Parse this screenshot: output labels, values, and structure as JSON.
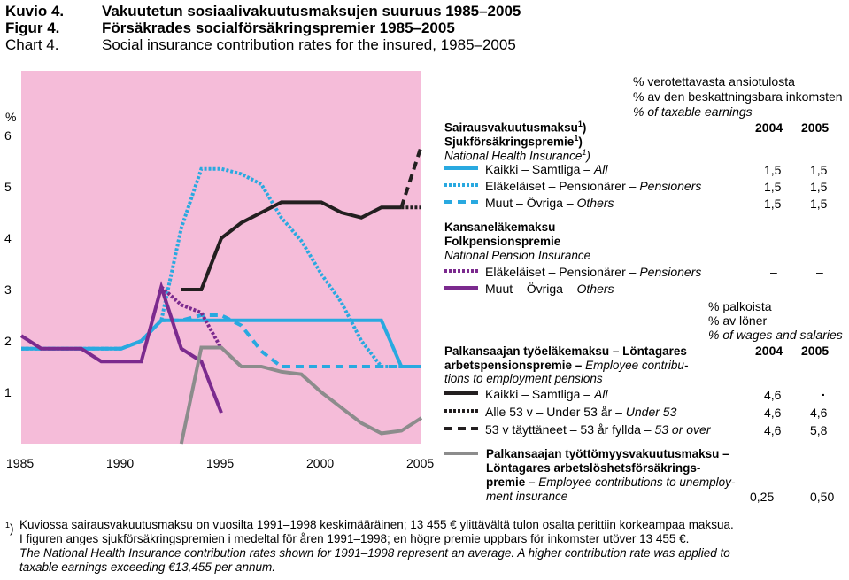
{
  "titles": {
    "fi_label": "Kuvio 4.",
    "fi_text": "Vakuutetun sosiaalivakuutusmaksujen suuruus 1985–2005",
    "sv_label": "Figur 4.",
    "sv_text": "Försäkrades socialförsäkringspremier 1985–2005",
    "en_label": "Chart 4.",
    "en_text": "Social insurance contribution rates for the insured, 1985–2005"
  },
  "colors": {
    "plot_bg": "#f5bcd9",
    "health": "#29a9e0",
    "pension_nat": "#7b2a8e",
    "employee": "#231f20",
    "unemployment": "#8c8c8c"
  },
  "chart_data": {
    "type": "line",
    "ylabel": "%",
    "xlim": [
      1985,
      2005
    ],
    "ylim": [
      0,
      7
    ],
    "x_ticks": [
      1985,
      1990,
      1995,
      2000,
      2005
    ],
    "y_ticks": [
      1,
      2,
      3,
      4,
      5,
      6
    ],
    "grid": false,
    "series": [
      {
        "name": "Kaikki – Samtliga – All",
        "group": "health",
        "style": "solid",
        "x": [
          1985,
          1986,
          1987,
          1988,
          1989,
          1990,
          1991,
          1992,
          1993,
          1994,
          1995,
          1996,
          1997,
          1998,
          1999,
          2000,
          2001,
          2002,
          2003,
          2004,
          2005
        ],
        "y": [
          1.85,
          1.85,
          1.85,
          1.85,
          1.85,
          1.85,
          2.0,
          2.4,
          2.4,
          2.4,
          2.4,
          2.4,
          2.4,
          2.4,
          2.4,
          2.4,
          2.4,
          2.4,
          2.4,
          1.5,
          1.5
        ]
      },
      {
        "name": "Eläkeläiset – Pensionärer – Pensioners",
        "group": "health",
        "style": "dotted",
        "x": [
          1985,
          1986,
          1987,
          1988,
          1989,
          1990,
          1991,
          1992,
          1993,
          1994,
          1995,
          1996,
          1997,
          1998,
          1999,
          2000,
          2001,
          2002,
          2003,
          2004,
          2005
        ],
        "y": [
          1.85,
          1.85,
          1.85,
          1.85,
          1.85,
          1.85,
          2.0,
          2.4,
          4.2,
          5.35,
          5.35,
          5.25,
          5.05,
          4.4,
          3.95,
          3.3,
          2.75,
          2.0,
          1.5,
          1.5,
          1.5
        ]
      },
      {
        "name": "Muut – Övriga – Others",
        "group": "health",
        "style": "dashed",
        "x": [
          1985,
          1986,
          1987,
          1988,
          1989,
          1990,
          1991,
          1992,
          1993,
          1994,
          1995,
          1996,
          1997,
          1998,
          1999,
          2000,
          2001,
          2002,
          2003,
          2004,
          2005
        ],
        "y": [
          1.85,
          1.85,
          1.85,
          1.85,
          1.85,
          1.85,
          2.0,
          2.4,
          2.4,
          2.5,
          2.5,
          2.3,
          1.8,
          1.5,
          1.5,
          1.5,
          1.5,
          1.5,
          1.5,
          1.5,
          1.5
        ]
      },
      {
        "name": "Eläkeläiset – Pensionärer – Pensioners",
        "group": "national_pension",
        "style": "dotted",
        "x": [
          1992,
          1993,
          1994,
          1995
        ],
        "y": [
          3.05,
          2.7,
          2.55,
          1.85
        ]
      },
      {
        "name": "Muut – Övriga – Others",
        "group": "national_pension",
        "style": "solid",
        "x": [
          1985,
          1986,
          1987,
          1988,
          1989,
          1990,
          1991,
          1992,
          1993,
          1994,
          1995
        ],
        "y": [
          2.1,
          1.85,
          1.85,
          1.85,
          1.6,
          1.6,
          1.6,
          3.05,
          1.85,
          1.6,
          0.6
        ]
      },
      {
        "name": "Kaikki – Samtliga – All",
        "group": "employee_pension",
        "style": "solid",
        "x": [
          1993,
          1994,
          1995,
          1996,
          1997,
          1998,
          1999,
          2000,
          2001,
          2002,
          2003,
          2004
        ],
        "y": [
          3.0,
          3.0,
          4.0,
          4.3,
          4.5,
          4.7,
          4.7,
          4.7,
          4.5,
          4.4,
          4.6,
          4.6
        ]
      },
      {
        "name": "Alle 53 v – Under 53 år – Under 53",
        "group": "employee_pension",
        "style": "dotted",
        "x": [
          2004,
          2005
        ],
        "y": [
          4.6,
          4.6
        ]
      },
      {
        "name": "53 v täyttäneet – 53 år fyllda – 53 or over",
        "group": "employee_pension",
        "style": "dashed",
        "x": [
          2004,
          2005
        ],
        "y": [
          4.6,
          5.8
        ]
      },
      {
        "name": "Palkansaajan työttömyysvakuutusmaksu – Löntagares arbetslöshetsförsäkringspremie – Employee contributions to unemployment insurance",
        "group": "unemployment",
        "style": "solid",
        "x": [
          1993,
          1994,
          1995,
          1996,
          1997,
          1998,
          1999,
          2000,
          2001,
          2002,
          2003,
          2004,
          2005
        ],
        "y": [
          0.0,
          1.87,
          1.87,
          1.5,
          1.5,
          1.4,
          1.35,
          1.0,
          0.7,
          0.4,
          0.2,
          0.25,
          0.5
        ]
      }
    ]
  },
  "legend": {
    "unit1_fi": "% verotettavasta ansiotulosta",
    "unit1_sv": "% av den beskattningsbara inkomsten",
    "unit1_en": "% of taxable earnings",
    "health_fi": "Sairausvakuutusmaksu",
    "health_sv": "Sjukförsäkringspremie",
    "health_en": "National Health Insurance",
    "footnote_mark": "1",
    "footnote_paren": ")",
    "col_2004": "2004",
    "col_2005": "2005",
    "health_items": [
      {
        "label": "Kaikki – Samtliga – ",
        "label_en": "All",
        "v2004": "1,5",
        "v2005": "1,5"
      },
      {
        "label": "Eläkeläiset – Pensionärer – ",
        "label_en": "Pensioners",
        "v2004": "1,5",
        "v2005": "1,5"
      },
      {
        "label": "Muut – Övriga – ",
        "label_en": "Others",
        "v2004": "1,5",
        "v2005": "1,5"
      }
    ],
    "natpen_fi": "Kansaneläkemaksu",
    "natpen_sv": "Folkpensionspremie",
    "natpen_en": "National Pension Insurance",
    "natpen_items": [
      {
        "label": "Eläkeläiset – Pensionärer – ",
        "label_en": "Pensioners",
        "v2004": "–",
        "v2005": "–"
      },
      {
        "label": "Muut – Övriga – ",
        "label_en": "Others",
        "v2004": "–",
        "v2005": "–"
      }
    ],
    "unit2_fi": "% palkoista",
    "unit2_sv": "% av löner",
    "unit2_en": "% of wages and salaries",
    "emp_line1": "Palkansaajan työeläkemaksu – Löntagares",
    "emp_line2_bold": "arbetspensionspremie – ",
    "emp_line2_it": "Employee contribu-",
    "emp_line3": "tions to employment pensions",
    "emp_items": [
      {
        "label": "Kaikki – Samtliga – ",
        "label_en": "All",
        "v2004": "4,6",
        "v2005": "."
      },
      {
        "label": "Alle 53 v – Under 53 år – ",
        "label_en": "Under 53",
        "v2004": "4,6",
        "v2005": "4,6"
      },
      {
        "label": "53 v täyttäneet – 53 år fyllda – ",
        "label_en": "53 or over",
        "v2004": "4,6",
        "v2005": "5,8"
      }
    ],
    "unemp_line1": "Palkansaajan työttömyysvakuutusmaksu –",
    "unemp_line2": "Löntagares arbetslöshetsförsäkrings-",
    "unemp_line3_bold": "premie – ",
    "unemp_line3_it": "Employee contributions to unemploy-",
    "unemp_line4": "ment insurance",
    "unemp_v2004": "0,25",
    "unemp_v2005": "0,50"
  },
  "footnote": {
    "mark": "1",
    "paren": ")",
    "fi": "Kuviossa sairausvakuutusmaksu on vuosilta 1991–1998 keskimääräinen; 13 455 € ylittävältä tulon osalta perittiin korkeampaa maksua.",
    "sv": "I figuren anges sjukförsäkringspremien i medeltal för åren 1991–1998; en högre premie uppbars för inkomster utöver 13 455 €.",
    "en1": "The National Health Insurance contribution rates shown for 1991–1998 represent an average. A higher contribution rate was applied to",
    "en2": "taxable earnings exceeding €13,455 per annum."
  }
}
